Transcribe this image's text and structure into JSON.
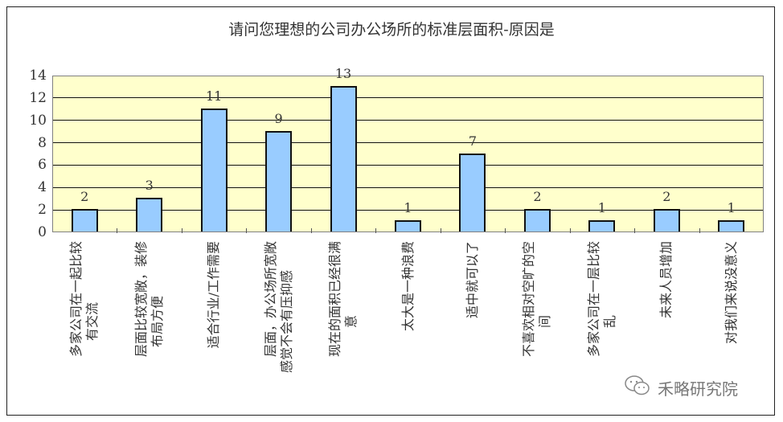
{
  "chart_data": {
    "type": "bar",
    "title": "请问您理想的公司办公场所的标准层面积-原因是",
    "xlabel": "",
    "ylabel": "",
    "ylim": [
      0,
      14
    ],
    "yticks": [
      0,
      2,
      4,
      6,
      8,
      10,
      12,
      14
    ],
    "grid": true,
    "legend": null,
    "bar_color": "#99CCFF",
    "plot_background": "#FFFFCC",
    "categories": [
      "多家公司在一起比较有交流",
      "层面比较宽敞，装修布局方便",
      "适合行业/工作需要",
      "层面，办公场所宽敞感觉不会有压抑感",
      "现在的面积已经很满意",
      "太大是一种浪费",
      "适中就可以了",
      "不喜欢相对空旷的空间",
      "多家公司在一层比较乱",
      "未来人员增加",
      "对我们来说没意义"
    ],
    "values": [
      2,
      3,
      11,
      9,
      13,
      1,
      7,
      2,
      1,
      2,
      1
    ]
  },
  "labels_wrapped": [
    [
      "多家公司在一起比较",
      "有交流"
    ],
    [
      "层面比较宽敞，装修",
      "布局方便"
    ],
    [
      "适合行业/工作需要"
    ],
    [
      "层面，办公场所宽敞",
      "感觉不会有压抑感"
    ],
    [
      "现在的面积已经很满",
      "意"
    ],
    [
      "太大是一种浪费"
    ],
    [
      "适中就可以了"
    ],
    [
      "不喜欢相对空旷的空",
      "间"
    ],
    [
      "多家公司在一层比较",
      "乱"
    ],
    [
      "未来人员增加"
    ],
    [
      "对我们来说没意义"
    ]
  ],
  "watermark": {
    "icon": "wechat-icon",
    "text": "禾略研究院"
  }
}
